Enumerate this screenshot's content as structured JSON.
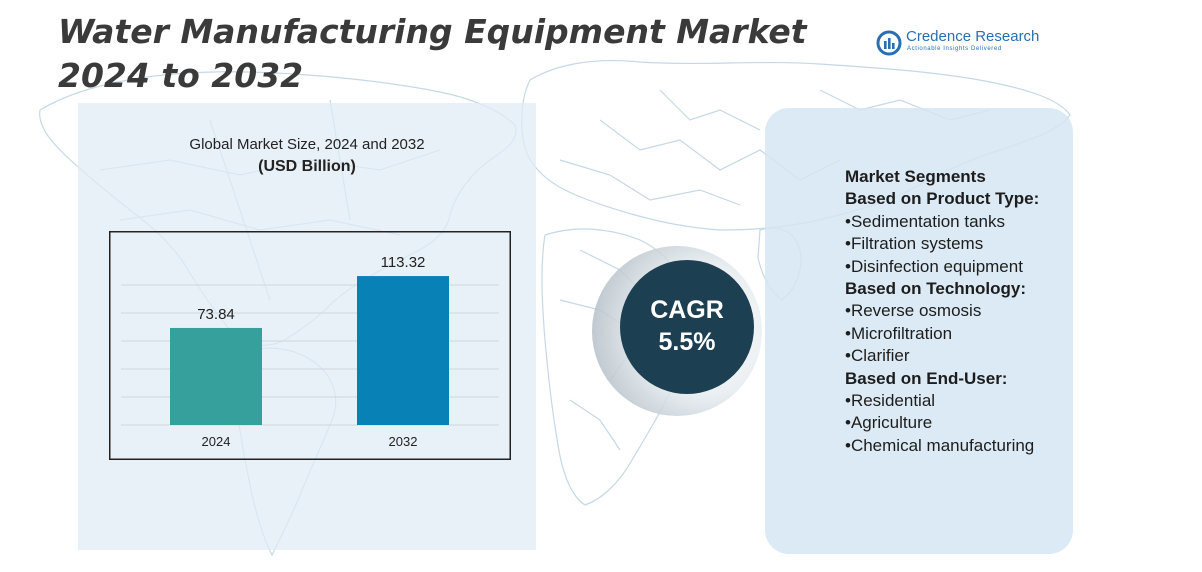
{
  "page": {
    "title": "Water Manufacturing Equipment Market 2024 to 2032"
  },
  "logo": {
    "name": "Credence Research",
    "tagline": "Actionable Insights Delivered",
    "icon": "credence-logo-icon"
  },
  "chart": {
    "title": "Global Market Size, 2024 and 2032",
    "unit": "(USD Billion)"
  },
  "chart_data": {
    "type": "bar",
    "categories": [
      "2024",
      "2032"
    ],
    "values": [
      73.84,
      113.32
    ],
    "data_labels": [
      "73.84",
      "113.32"
    ],
    "colors": [
      "#36a09c",
      "#0881b6"
    ],
    "title": "Global Market Size, 2024 and 2032",
    "subtitle": "(USD Billion)",
    "xlabel": "",
    "ylabel": "",
    "grid": true,
    "legend": "none",
    "ylim": [
      0,
      140
    ]
  },
  "cagr": {
    "label": "CAGR",
    "value": "5.5%"
  },
  "segments": {
    "heading": "Market Segments",
    "groups": [
      {
        "title": "Based on Product Type:",
        "items": [
          "Sedimentation tanks",
          "Filtration systems",
          "Disinfection equipment"
        ]
      },
      {
        "title": "Based on Technology:",
        "items": [
          "Reverse osmosis",
          "Microfiltration",
          "Clarifier"
        ]
      },
      {
        "title": "Based on End-User:",
        "items": [
          "Residential",
          "Agriculture",
          "Chemical manufacturing"
        ]
      }
    ]
  },
  "colors": {
    "title": "#3a3a3a",
    "bar_2024": "#36a09c",
    "bar_2032": "#0881b6",
    "cagr_circle": "#1d3f52",
    "panel": "#d5e6f2",
    "map_line": "#c3d6e4"
  }
}
